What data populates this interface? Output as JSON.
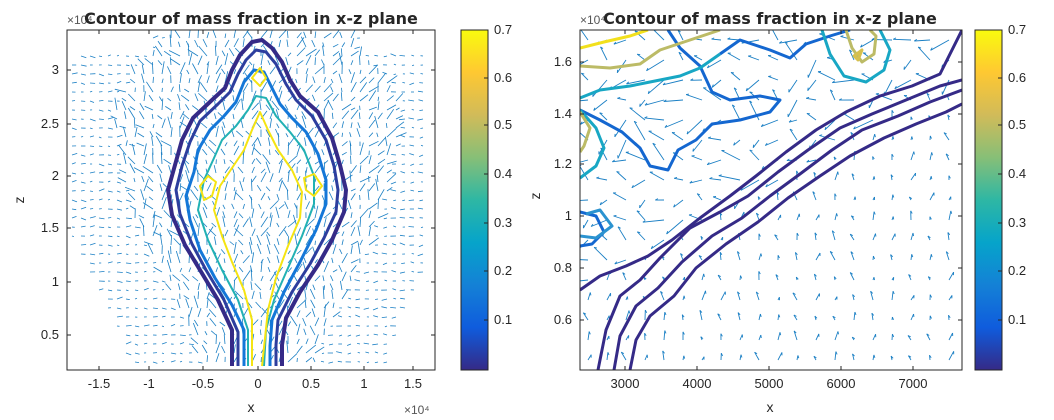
{
  "colormap": [
    "#352a87",
    "#0268e1",
    "#1485d4",
    "#06a7c6",
    "#38b99e",
    "#92bf73",
    "#d9ba56",
    "#fcce2e",
    "#f9fb0e"
  ],
  "figures": [
    {
      "title": "Contour of mass fraction in x-z plane",
      "xlabel": "x",
      "ylabel": "z",
      "x_multiplier": "×10⁴",
      "y_multiplier": "×10⁴",
      "xticks": [
        "-1.5",
        "-1",
        "-0.5",
        "0",
        "0.5",
        "1",
        "1.5"
      ],
      "yticks": [
        "0.5",
        "1",
        "1.5",
        "2",
        "2.5",
        "3"
      ],
      "colorbar_ticks": [
        "0.1",
        "0.2",
        "0.3",
        "0.4",
        "0.5",
        "0.6",
        "0.7"
      ]
    },
    {
      "title": "Contour of mass fraction in x-z plane",
      "xlabel": "x",
      "ylabel": "z",
      "y_multiplier": "×10⁴",
      "xticks": [
        "3000",
        "4000",
        "5000",
        "6000",
        "7000"
      ],
      "yticks": [
        "0.6",
        "0.8",
        "1",
        "1.2",
        "1.4",
        "1.6"
      ],
      "colorbar_ticks": [
        "0.1",
        "0.2",
        "0.3",
        "0.4",
        "0.5",
        "0.6",
        "0.7"
      ]
    }
  ],
  "chart_data": [
    {
      "type": "contour",
      "title": "Contour of mass fraction in x-z plane",
      "xlabel": "x",
      "ylabel": "z",
      "xlim": [
        -18500,
        18500
      ],
      "ylim": [
        1500,
        33800
      ],
      "x_scale_note": "×10^4",
      "y_scale_note": "×10^4",
      "colorbar": {
        "clim": [
          0.0,
          0.7
        ],
        "ticks": [
          0.1,
          0.2,
          0.3,
          0.4,
          0.5,
          0.6,
          0.7
        ]
      },
      "overlay": "velocity quiver field",
      "contour_levels": [
        0.05,
        0.1,
        0.2,
        0.4,
        0.6
      ]
    },
    {
      "type": "contour",
      "title": "Contour of mass fraction in x-z plane",
      "xlabel": "x",
      "ylabel": "z",
      "xlim": [
        2400,
        7400
      ],
      "ylim": [
        4100,
        17500
      ],
      "y_scale_note": "×10^4",
      "colorbar": {
        "clim": [
          0.0,
          0.7
        ],
        "ticks": [
          0.1,
          0.2,
          0.3,
          0.4,
          0.5,
          0.6,
          0.7
        ]
      },
      "overlay": "velocity quiver field",
      "contour_levels": [
        0.05,
        0.1,
        0.2,
        0.4,
        0.6
      ]
    }
  ]
}
